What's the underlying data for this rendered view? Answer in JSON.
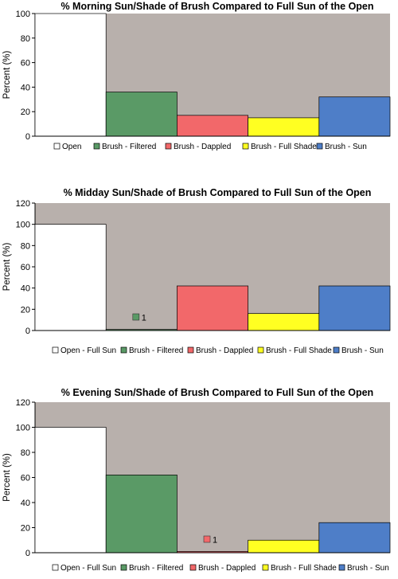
{
  "chart_data": [
    {
      "type": "bar",
      "title": "% Morning Sun/Shade of Brush Compared to Full Sun of the Open",
      "ylabel": "Percent (%)",
      "ylim": [
        0,
        100
      ],
      "yticks": [
        "0",
        "20",
        "40",
        "60",
        "80",
        "100"
      ],
      "grid": false,
      "legend_position": "bottom",
      "categories": [
        "Open",
        "Brush - Filtered",
        "Brush - Dappled",
        "Brush - Full Shade",
        "Brush - Sun"
      ],
      "values": [
        100,
        36,
        17,
        15,
        32
      ],
      "colors": [
        "#ffffff",
        "#5a9a66",
        "#f2686a",
        "#ffff22",
        "#4e7ec8"
      ],
      "annotations": []
    },
    {
      "type": "bar",
      "title": "% Midday Sun/Shade of Brush Compared to Full Sun of the Open",
      "ylabel": "Percent (%)",
      "ylim": [
        0,
        120
      ],
      "yticks": [
        "0",
        "20",
        "40",
        "60",
        "80",
        "100",
        "120"
      ],
      "grid": false,
      "legend_position": "bottom",
      "categories": [
        "Open - Full Sun",
        "Brush - Filtered",
        "Brush - Dappled",
        "Brush - Full Shade",
        "Brush - Sun"
      ],
      "values": [
        100,
        1,
        42,
        16,
        42
      ],
      "colors": [
        "#ffffff",
        "#5a9a66",
        "#f2686a",
        "#ffff22",
        "#4e7ec8"
      ],
      "annotations": [
        {
          "series_index": 1,
          "text": "1"
        }
      ]
    },
    {
      "type": "bar",
      "title": "% Evening Sun/Shade of Brush Compared to Full Sun of the Open",
      "ylabel": "Percent (%)",
      "ylim": [
        0,
        120
      ],
      "yticks": [
        "0",
        "20",
        "40",
        "60",
        "80",
        "100",
        "120"
      ],
      "grid": false,
      "legend_position": "bottom",
      "categories": [
        "Open - Full Sun",
        "Brush - Filtered",
        "Brush - Dappled",
        "Brush - Full Shade",
        "Brush - Sun"
      ],
      "values": [
        100,
        62,
        1,
        10,
        24
      ],
      "colors": [
        "#ffffff",
        "#5a9a66",
        "#f2686a",
        "#ffff22",
        "#4e7ec8"
      ],
      "annotations": [
        {
          "series_index": 2,
          "text": "1"
        }
      ]
    }
  ],
  "colors": {
    "plot_background": "#b8b0ac",
    "axis": "#000000"
  }
}
